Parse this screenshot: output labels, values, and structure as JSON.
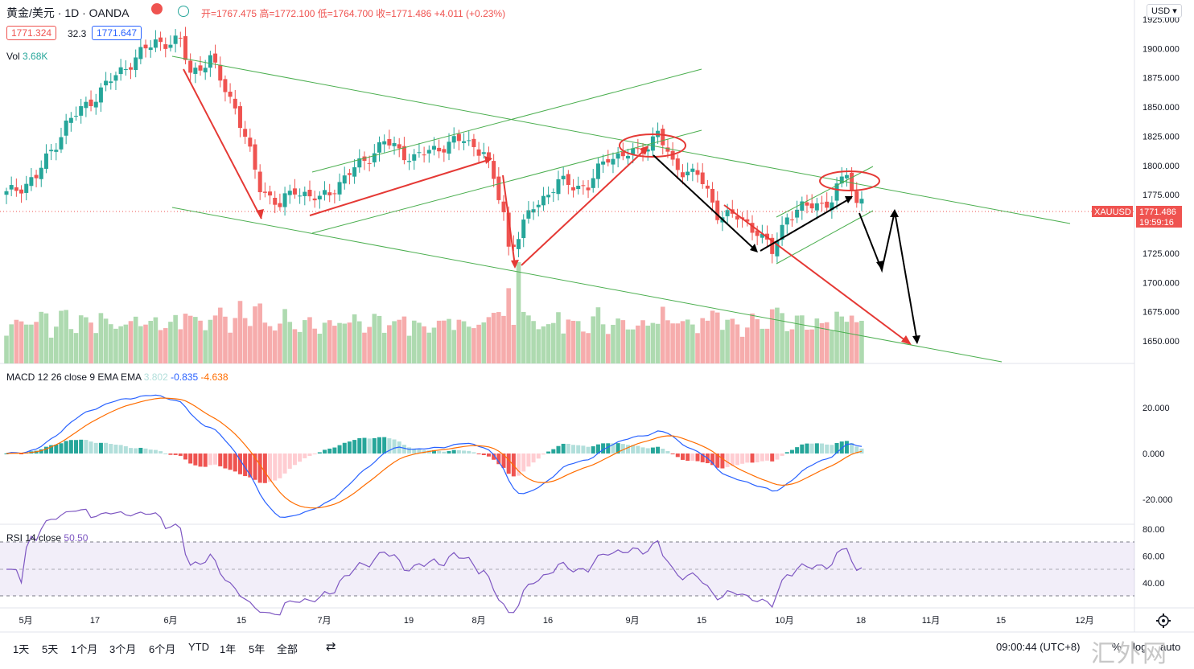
{
  "header": {
    "symbol": "黄金/美元 · 1D · OANDA",
    "ohlc_label": "开=1767.475 高=1772.100 低=1764.700 收=1771.486 +4.011 (+0.23%)",
    "bid": "1771.324",
    "spread": "32.3",
    "ask": "1771.647",
    "vol_label": "Vol",
    "vol_value": "3.68K",
    "currency": "USD"
  },
  "price_tag": {
    "symbol": "XAUUSD",
    "price": "1771.486",
    "countdown": "19:59:16"
  },
  "macd": {
    "title": "MACD 12 26 close 9 EMA EMA",
    "hist_value": "3.802",
    "macd_value": "-0.835",
    "signal_value": "-4.638"
  },
  "rsi": {
    "title": "RSI 14 close",
    "value": "50.50"
  },
  "footer": {
    "timeframes": [
      "1天",
      "5天",
      "1个月",
      "3个月",
      "6个月",
      "YTD",
      "1年",
      "5年",
      "全部"
    ],
    "clock": "09:00:44 (UTC+8)",
    "percent": "%",
    "log": "log",
    "auto": "auto",
    "watermark": "汇外网"
  },
  "colors": {
    "up": "#26a69a",
    "down": "#ef5350",
    "macd_line": "#2962ff",
    "signal_line": "#ff6d00",
    "rsi_line": "#7e57c2",
    "channel": "#4caf50",
    "annotation_red": "#e53935",
    "annotation_black": "#000000"
  },
  "chart_data": {
    "type": "candlestick",
    "title": "黄金/美元 1D OANDA",
    "x_labels": [
      "5月",
      "17",
      "6月",
      "15",
      "7月",
      "19",
      "8月",
      "16",
      "9月",
      "15",
      "10月",
      "18",
      "11月",
      "15",
      "12月"
    ],
    "price_axis": [
      1650,
      1675,
      1700,
      1725,
      1750,
      1775,
      1800,
      1825,
      1850,
      1875,
      1900,
      1925
    ],
    "macd_axis": [
      -20,
      0,
      20
    ],
    "rsi_axis": [
      40,
      60,
      80
    ],
    "rsi_bands": [
      30,
      50,
      70
    ],
    "last_close": 1771.486,
    "price_anchors": [
      {
        "i": 0,
        "close": 1775
      },
      {
        "i": 6,
        "close": 1790
      },
      {
        "i": 12,
        "close": 1835
      },
      {
        "i": 18,
        "close": 1860
      },
      {
        "i": 24,
        "close": 1885
      },
      {
        "i": 30,
        "close": 1906
      },
      {
        "i": 35,
        "close": 1905
      },
      {
        "i": 37,
        "close": 1880
      },
      {
        "i": 41,
        "close": 1890
      },
      {
        "i": 46,
        "close": 1850
      },
      {
        "i": 51,
        "close": 1782
      },
      {
        "i": 55,
        "close": 1765
      },
      {
        "i": 58,
        "close": 1780
      },
      {
        "i": 63,
        "close": 1770
      },
      {
        "i": 70,
        "close": 1797
      },
      {
        "i": 76,
        "close": 1820
      },
      {
        "i": 82,
        "close": 1806
      },
      {
        "i": 87,
        "close": 1816
      },
      {
        "i": 92,
        "close": 1822
      },
      {
        "i": 96,
        "close": 1812
      },
      {
        "i": 100,
        "close": 1760
      },
      {
        "i": 101,
        "close": 1730
      },
      {
        "i": 103,
        "close": 1740
      },
      {
        "i": 106,
        "close": 1765
      },
      {
        "i": 111,
        "close": 1785
      },
      {
        "i": 117,
        "close": 1782
      },
      {
        "i": 121,
        "close": 1808
      },
      {
        "i": 127,
        "close": 1810
      },
      {
        "i": 131,
        "close": 1828
      },
      {
        "i": 134,
        "close": 1800
      },
      {
        "i": 139,
        "close": 1792
      },
      {
        "i": 143,
        "close": 1760
      },
      {
        "i": 147,
        "close": 1755
      },
      {
        "i": 151,
        "close": 1745
      },
      {
        "i": 154,
        "close": 1725
      },
      {
        "i": 157,
        "close": 1758
      },
      {
        "i": 162,
        "close": 1766
      },
      {
        "i": 166,
        "close": 1770
      },
      {
        "i": 169,
        "close": 1795
      },
      {
        "i": 171,
        "close": 1767
      },
      {
        "i": 172,
        "close": 1771.5
      }
    ],
    "volume_scale": "relative",
    "annotations": [
      "downward channel (green)",
      "rising channels (green)",
      "red trend arrows",
      "black projected path arrows",
      "red ellipses at highs"
    ]
  }
}
